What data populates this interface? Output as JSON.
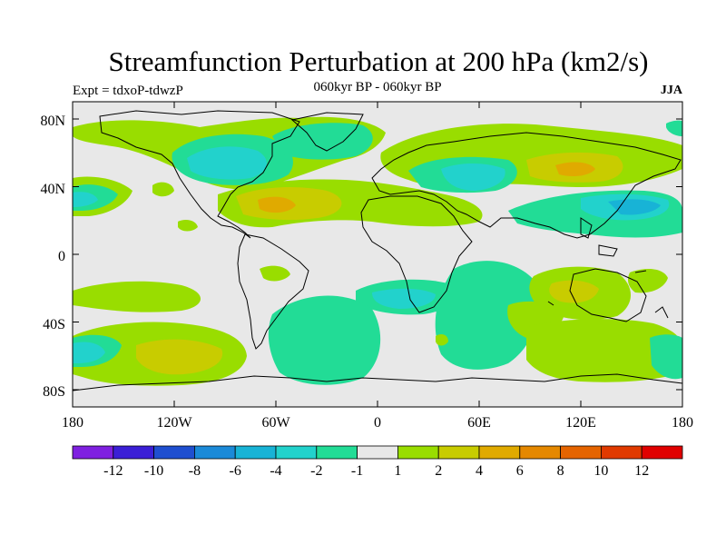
{
  "title": "Streamfunction Perturbation at 200 hPa (km2/s)",
  "subtitle": "060kyr BP - 060kyr BP",
  "left_string": "Expt = tdxoP-tdwzP",
  "right_string": "JJA",
  "axes": {
    "lon_ticks": [
      "180",
      "120W",
      "60W",
      "0",
      "60E",
      "120E",
      "180"
    ],
    "lat_ticks": [
      "80N",
      "40N",
      "0",
      "40S",
      "80S"
    ]
  },
  "colorbar": {
    "labels": [
      "-12",
      "-10",
      "-8",
      "-6",
      "-4",
      "-2",
      "-1",
      "1",
      "2",
      "4",
      "6",
      "8",
      "10",
      "12"
    ],
    "colors": [
      "#7f20e0",
      "#3b1fd6",
      "#1f4fd0",
      "#1b8ad8",
      "#18b3d6",
      "#22d2cc",
      "#22dc96",
      "#e8e8e8",
      "#99dd00",
      "#c8cc00",
      "#e0aa00",
      "#e58800",
      "#e56400",
      "#e03a00",
      "#e00000"
    ]
  },
  "palette": {
    "neutral": "#e8e8e8",
    "pos2": "#99dd00",
    "pos4": "#c8cc00",
    "pos6": "#e0aa00",
    "neg2": "#22dc96",
    "neg4": "#22d2cc",
    "neg6": "#18b3d6"
  }
}
